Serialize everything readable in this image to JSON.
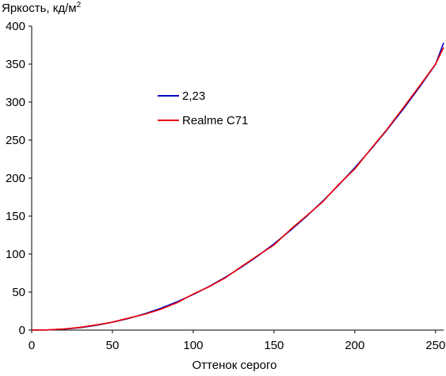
{
  "chart_data": {
    "type": "line",
    "ylabel_main": "Яркость, кд/м",
    "ylabel_sup": "2",
    "xlabel": "Оттенок серого",
    "xlim": [
      0,
      255
    ],
    "ylim": [
      0,
      400
    ],
    "x_ticks": [
      "0",
      "50",
      "100",
      "150",
      "200",
      "250"
    ],
    "y_ticks": [
      "0",
      "50",
      "100",
      "150",
      "200",
      "250",
      "300",
      "350",
      "400"
    ],
    "grid": false,
    "legend_position": "upper-left-inner",
    "series": [
      {
        "name": "2,23",
        "color": "#0000cc",
        "x": [
          0,
          10,
          20,
          30,
          40,
          50,
          60,
          70,
          80,
          90,
          100,
          110,
          120,
          130,
          140,
          150,
          160,
          170,
          180,
          190,
          200,
          210,
          220,
          230,
          240,
          250,
          255
        ],
        "y": [
          0,
          0.2,
          1.3,
          3.2,
          6.3,
          10.3,
          15.3,
          21.5,
          28.8,
          37.2,
          46.8,
          57.6,
          69.7,
          83.0,
          97.6,
          113.5,
          130.8,
          149.4,
          169.4,
          190.8,
          213.6,
          237.9,
          263.6,
          290.8,
          319.5,
          349.7,
          378
        ]
      },
      {
        "name": "Realme C71",
        "color": "#ee0000",
        "x": [
          0,
          10,
          20,
          30,
          40,
          50,
          60,
          70,
          80,
          90,
          100,
          110,
          120,
          130,
          140,
          150,
          160,
          170,
          180,
          190,
          200,
          210,
          220,
          230,
          240,
          250,
          255
        ],
        "y": [
          0,
          0.3,
          1.5,
          3.6,
          6.8,
          10.5,
          15.8,
          20.8,
          27.5,
          36.0,
          47.5,
          57.2,
          69.0,
          83.8,
          98.2,
          112.0,
          132.0,
          150.2,
          168.5,
          191.5,
          212.0,
          238.5,
          264.3,
          292.5,
          321.0,
          350.0,
          372
        ]
      }
    ]
  }
}
